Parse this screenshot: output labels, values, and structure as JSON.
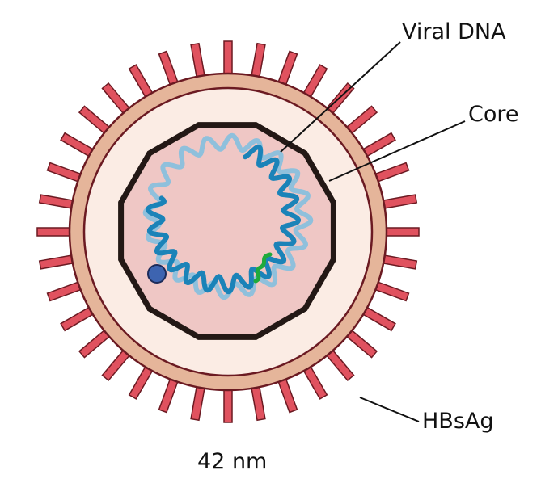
{
  "labels": {
    "viral_dna": "Viral DNA",
    "core": "Core",
    "hbsag": "HBsAg",
    "size": "42 nm"
  },
  "colors": {
    "spike": "#e0525f",
    "spike_outline": "#6b1a22",
    "envelope": "#e5b59a",
    "interior": "#fbece4",
    "capsid_shell": "#231815",
    "capsid_fill": "#efc7c5",
    "dna_dark": "#1b83b8",
    "dna_light": "#8fc0dc",
    "dna_green": "#1faa3c",
    "polymerase": "#3d64b0"
  },
  "spike_count": 36
}
